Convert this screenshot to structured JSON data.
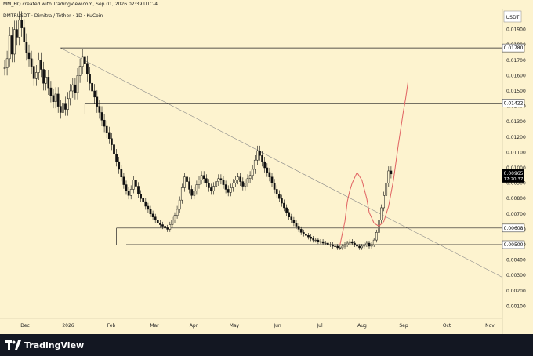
{
  "header": {
    "created_text": "MM_HQ created with TradingView.com, Sep 01, 2026 02:39 UTC-4",
    "symbol_text": "DMTRUSDT · Dimitra / Tether · 1D · KuCoin",
    "currency": "USDT"
  },
  "footer": {
    "brand": "TradingView"
  },
  "colors": {
    "background": "#fdf3cf",
    "candle": "#111111",
    "line": "#222222",
    "projection": "#e06060",
    "last_price_label": "#000000"
  },
  "last_price": {
    "value": "0.00965",
    "countdown": "17:20:37"
  },
  "chart_data": {
    "type": "candlestick",
    "ylim": [
      0.0,
      0.02
    ],
    "y_ticks": [
      "0.01900",
      "0.01800",
      "0.01700",
      "0.01600",
      "0.01500",
      "0.01400",
      "0.01300",
      "0.01200",
      "0.01100",
      "0.01000",
      "0.00900",
      "0.00800",
      "0.00700",
      "0.00600",
      "0.00500",
      "0.00400",
      "0.00300",
      "0.00200",
      "0.00100"
    ],
    "x_ticks": [
      "Dec",
      "2026",
      "Feb",
      "Mar",
      "Apr",
      "May",
      "Jun",
      "Jul",
      "Aug",
      "Sep",
      "Oct",
      "Nov"
    ],
    "price_levels": [
      {
        "value": 0.0178,
        "label": "0.01780"
      },
      {
        "value": 0.01422,
        "label": "0.01422"
      },
      {
        "value": 0.00608,
        "label": "0.00608"
      },
      {
        "value": 0.005,
        "label": "0.00500"
      }
    ],
    "closes": [
      0.0165,
      0.0171,
      0.0186,
      0.0174,
      0.019,
      0.0185,
      0.0196,
      0.0191,
      0.0182,
      0.0175,
      0.0171,
      0.0166,
      0.0158,
      0.0162,
      0.017,
      0.0164,
      0.0155,
      0.0159,
      0.0152,
      0.0147,
      0.0143,
      0.0148,
      0.014,
      0.0136,
      0.0142,
      0.0138,
      0.0145,
      0.015,
      0.0154,
      0.0149,
      0.016,
      0.0166,
      0.0172,
      0.0168,
      0.0161,
      0.0155,
      0.015,
      0.0146,
      0.014,
      0.0136,
      0.0131,
      0.0127,
      0.0123,
      0.0119,
      0.0115,
      0.0109,
      0.0104,
      0.0099,
      0.0094,
      0.0089,
      0.0085,
      0.0082,
      0.0086,
      0.0092,
      0.0088,
      0.0083,
      0.008,
      0.0078,
      0.0075,
      0.0073,
      0.007,
      0.0068,
      0.0066,
      0.0064,
      0.0063,
      0.0062,
      0.0061,
      0.006,
      0.0063,
      0.0066,
      0.0069,
      0.0073,
      0.0079,
      0.0087,
      0.0094,
      0.0091,
      0.0086,
      0.0082,
      0.0085,
      0.0089,
      0.0092,
      0.0095,
      0.0093,
      0.009,
      0.0087,
      0.0085,
      0.0088,
      0.0091,
      0.0093,
      0.0092,
      0.0089,
      0.0086,
      0.0084,
      0.0087,
      0.009,
      0.0092,
      0.0094,
      0.0091,
      0.0088,
      0.009,
      0.0093,
      0.0095,
      0.0099,
      0.0105,
      0.0111,
      0.0108,
      0.0104,
      0.01,
      0.0097,
      0.0094,
      0.009,
      0.0086,
      0.0083,
      0.008,
      0.0077,
      0.0074,
      0.0071,
      0.0068,
      0.0066,
      0.0064,
      0.0062,
      0.006,
      0.0058,
      0.0057,
      0.0056,
      0.0055,
      0.0054,
      0.0053,
      0.0053,
      0.0052,
      0.0052,
      0.0051,
      0.0051,
      0.005,
      0.005,
      0.0049,
      0.0049,
      0.0048,
      0.0048,
      0.0049,
      0.005,
      0.0051,
      0.0052,
      0.0051,
      0.005,
      0.0049,
      0.0048,
      0.0049,
      0.005,
      0.0051,
      0.0049,
      0.005,
      0.0053,
      0.0058,
      0.0066,
      0.0074,
      0.0082,
      0.009,
      0.0098,
      0.0096
    ],
    "projection": [
      {
        "x_index": 138,
        "y": 0.005
      },
      {
        "x_index": 140,
        "y": 0.0065
      },
      {
        "x_index": 141,
        "y": 0.0078
      },
      {
        "x_index": 142,
        "y": 0.0085
      },
      {
        "x_index": 143,
        "y": 0.009
      },
      {
        "x_index": 145,
        "y": 0.0097
      },
      {
        "x_index": 147,
        "y": 0.0092
      },
      {
        "x_index": 149,
        "y": 0.008
      },
      {
        "x_index": 150,
        "y": 0.0071
      },
      {
        "x_index": 152,
        "y": 0.0064
      },
      {
        "x_index": 154,
        "y": 0.0062
      },
      {
        "x_index": 156,
        "y": 0.0065
      },
      {
        "x_index": 158,
        "y": 0.0075
      },
      {
        "x_index": 160,
        "y": 0.0092
      },
      {
        "x_index": 162,
        "y": 0.0115
      },
      {
        "x_index": 164,
        "y": 0.0136
      },
      {
        "x_index": 165,
        "y": 0.0145
      },
      {
        "x_index": 166,
        "y": 0.0156
      }
    ]
  }
}
